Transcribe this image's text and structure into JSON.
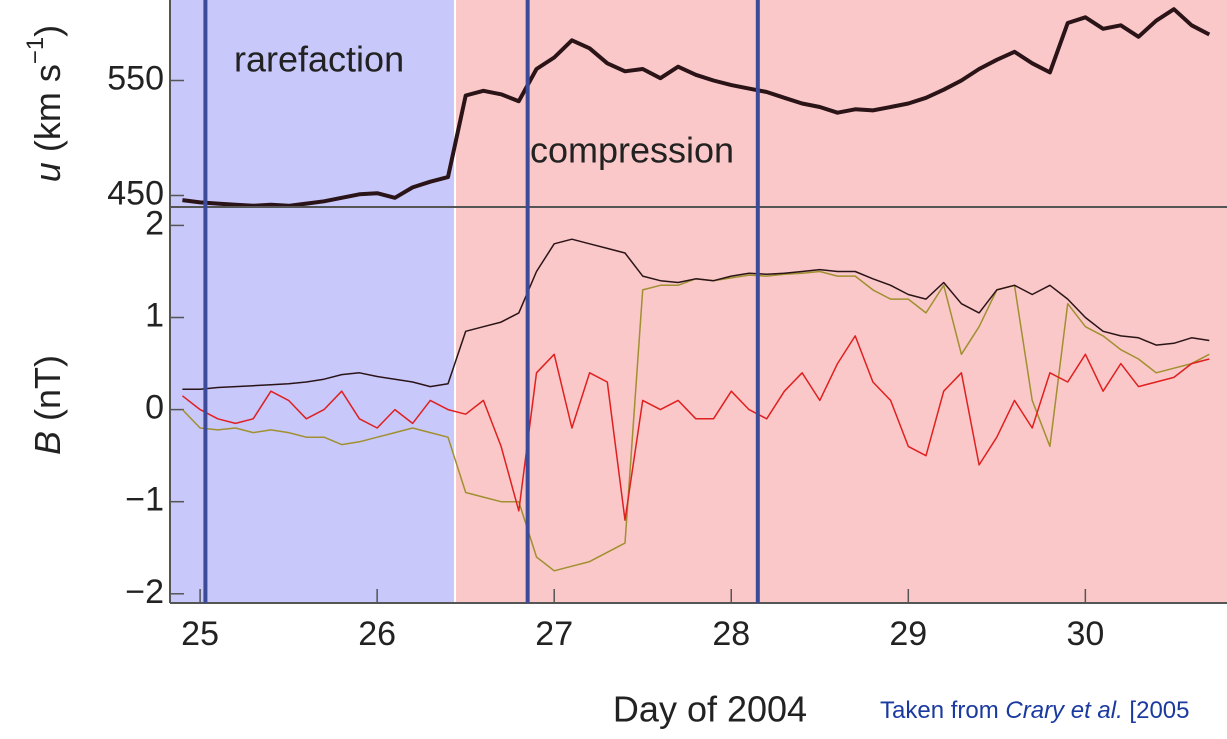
{
  "chart_data": [
    {
      "type": "line",
      "y_label": [
        "u",
        " (km s",
        "−1",
        ")"
      ],
      "xlim": [
        24.83,
        30.8
      ],
      "ylim": [
        440,
        620
      ],
      "yticks": [
        450,
        550
      ],
      "regions": [
        {
          "label": "rarefaction",
          "x": [
            24.83,
            26.44
          ],
          "color": "#c8c8fa",
          "label_color": "#1a1a8c"
        },
        {
          "label": "compression",
          "x": [
            26.44,
            30.8
          ],
          "color": "#fac8c8",
          "label_color": "#ff3b1a"
        }
      ],
      "vlines": [
        25.03,
        26.85,
        28.15
      ],
      "vline_color": "#3c4a9a",
      "x": [
        24.9,
        25.0,
        25.1,
        25.2,
        25.3,
        25.4,
        25.5,
        25.6,
        25.7,
        25.8,
        25.9,
        26.0,
        26.1,
        26.2,
        26.3,
        26.4,
        26.5,
        26.6,
        26.7,
        26.8,
        26.9,
        27.0,
        27.1,
        27.2,
        27.3,
        27.4,
        27.5,
        27.6,
        27.7,
        27.8,
        27.9,
        28.0,
        28.1,
        28.2,
        28.3,
        28.4,
        28.5,
        28.6,
        28.7,
        28.8,
        28.9,
        29.0,
        29.1,
        29.2,
        29.3,
        29.4,
        29.5,
        29.6,
        29.7,
        29.8,
        29.9,
        30.0,
        30.1,
        30.2,
        30.3,
        30.4,
        30.5,
        30.6,
        30.7
      ],
      "series": [
        {
          "color": "#2a1418",
          "width": 4,
          "values": [
            446,
            444,
            443,
            442,
            441,
            442,
            441,
            443,
            445,
            448,
            451,
            452,
            448,
            457,
            462,
            466,
            537,
            541,
            538,
            532,
            560,
            570,
            585,
            578,
            565,
            558,
            560,
            552,
            562,
            555,
            550,
            546,
            543,
            540,
            535,
            530,
            527,
            522,
            525,
            524,
            527,
            530,
            535,
            542,
            550,
            560,
            568,
            575,
            565,
            557,
            600,
            605,
            595,
            598,
            588,
            602,
            612,
            598,
            590
          ]
        }
      ]
    },
    {
      "type": "line",
      "y_label": [
        "B",
        " (nT)"
      ],
      "x_label": "Day of 2004",
      "credit": [
        "Taken from ",
        "Crary et al.",
        " [2005"
      ],
      "xlim": [
        24.83,
        30.8
      ],
      "xticks": [
        25,
        26,
        27,
        28,
        29,
        30
      ],
      "ylim": [
        -2.1,
        2.2
      ],
      "yticks": [
        {
          "value": -2,
          "label": "−2"
        },
        {
          "value": -1,
          "label": "−1"
        },
        0,
        1,
        2
      ],
      "x": [
        24.9,
        25.0,
        25.1,
        25.2,
        25.3,
        25.4,
        25.5,
        25.6,
        25.7,
        25.8,
        25.9,
        26.0,
        26.1,
        26.2,
        26.3,
        26.4,
        26.5,
        26.6,
        26.7,
        26.8,
        26.9,
        27.0,
        27.1,
        27.2,
        27.3,
        27.4,
        27.5,
        27.6,
        27.7,
        27.8,
        27.9,
        28.0,
        28.1,
        28.2,
        28.3,
        28.4,
        28.5,
        28.6,
        28.7,
        28.8,
        28.9,
        29.0,
        29.1,
        29.2,
        29.3,
        29.4,
        29.5,
        29.6,
        29.7,
        29.8,
        29.9,
        30.0,
        30.1,
        30.2,
        30.3,
        30.4,
        30.5,
        30.6,
        30.7
      ],
      "series": [
        {
          "color": "#a09030",
          "width": 1.5,
          "values": [
            0.0,
            -0.2,
            -0.22,
            -0.2,
            -0.25,
            -0.22,
            -0.25,
            -0.3,
            -0.3,
            -0.38,
            -0.35,
            -0.3,
            -0.25,
            -0.2,
            -0.25,
            -0.3,
            -0.9,
            -0.95,
            -1.0,
            -1.0,
            -1.6,
            -1.75,
            -1.7,
            -1.65,
            -1.55,
            -1.45,
            1.3,
            1.35,
            1.35,
            1.42,
            1.4,
            1.43,
            1.46,
            1.45,
            1.47,
            1.48,
            1.5,
            1.45,
            1.45,
            1.3,
            1.2,
            1.2,
            1.05,
            1.35,
            0.6,
            0.9,
            1.3,
            1.35,
            0.1,
            -0.4,
            1.15,
            0.9,
            0.8,
            0.65,
            0.55,
            0.4,
            0.45,
            0.5,
            0.6
          ]
        },
        {
          "color": "#e02020",
          "width": 1.5,
          "values": [
            0.15,
            0.0,
            -0.1,
            -0.15,
            -0.1,
            0.2,
            0.1,
            -0.1,
            0.0,
            0.2,
            -0.1,
            -0.2,
            0.0,
            -0.15,
            0.1,
            0.0,
            -0.05,
            0.1,
            -0.4,
            -1.1,
            0.4,
            0.6,
            -0.2,
            0.4,
            0.3,
            -1.2,
            0.1,
            0.0,
            0.1,
            -0.1,
            -0.1,
            0.2,
            0.0,
            -0.1,
            0.2,
            0.4,
            0.1,
            0.5,
            0.8,
            0.3,
            0.1,
            -0.4,
            -0.5,
            0.2,
            0.4,
            -0.6,
            -0.3,
            0.1,
            -0.2,
            0.4,
            0.3,
            0.6,
            0.2,
            0.5,
            0.25,
            0.3,
            0.35,
            0.5,
            0.55
          ]
        },
        {
          "color": "#2a1418",
          "width": 1.5,
          "values": [
            0.22,
            0.22,
            0.24,
            0.25,
            0.26,
            0.27,
            0.28,
            0.3,
            0.33,
            0.38,
            0.4,
            0.36,
            0.33,
            0.3,
            0.25,
            0.28,
            0.85,
            0.9,
            0.95,
            1.05,
            1.5,
            1.8,
            1.85,
            1.8,
            1.75,
            1.7,
            1.45,
            1.4,
            1.38,
            1.42,
            1.4,
            1.45,
            1.48,
            1.47,
            1.48,
            1.5,
            1.52,
            1.5,
            1.5,
            1.42,
            1.35,
            1.25,
            1.2,
            1.38,
            1.15,
            1.05,
            1.3,
            1.35,
            1.25,
            1.35,
            1.2,
            1.0,
            0.85,
            0.8,
            0.78,
            0.7,
            0.72,
            0.78,
            0.75
          ]
        }
      ]
    }
  ]
}
